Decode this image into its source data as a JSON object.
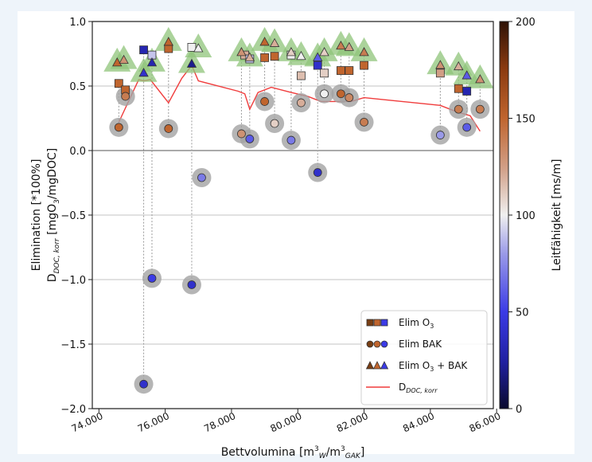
{
  "chart_data": {
    "type": "scatter",
    "xlabel_main": "Bettvolumina [m",
    "xlabel_sup1": "3",
    "xlabel_sub1": "W",
    "xlabel_mid": "/m",
    "xlabel_sup2": "3",
    "xlabel_sub2": "GAK",
    "xlabel_end": "]",
    "ylabel_line1": "Elimination [*100%]",
    "ylabel_line2_pre": "D",
    "ylabel_line2_sub": "DOC, korr",
    "ylabel_line2_post": " [mgO",
    "ylabel_line2_sub2": "3",
    "ylabel_line2_end": "/mgDOC]",
    "xlim": [
      73800,
      85900
    ],
    "ylim": [
      -2.0,
      1.0
    ],
    "xticks": [
      74000,
      76000,
      78000,
      80000,
      82000,
      84000,
      86000
    ],
    "xtick_labels": [
      "74.000",
      "76.000",
      "78.000",
      "80.000",
      "82.000",
      "84.000",
      "86.000"
    ],
    "yticks": [
      1.0,
      0.5,
      0.0,
      -0.5,
      -1.0,
      -1.5,
      -2.0
    ],
    "ytick_labels": [
      "1.0",
      "0.5",
      "0.0",
      "−0.5",
      "−1.0",
      "−1.5",
      "−2.0"
    ],
    "grid": "horizontal",
    "colorbar": {
      "label": "Leitfähigkeit [ms/m]",
      "range": [
        0,
        200
      ],
      "ticks": [
        0,
        50,
        100,
        150,
        200
      ],
      "tick_labels": [
        "0",
        "50",
        "100",
        "150",
        "200"
      ]
    },
    "legend": {
      "placement": "lower-right",
      "entries": [
        {
          "marker": "square",
          "label_pre": "Elim O",
          "label_sub": "3",
          "label_post": ""
        },
        {
          "marker": "circle",
          "label_pre": "Elim BAK",
          "label_sub": "",
          "label_post": ""
        },
        {
          "marker": "triangle",
          "label_pre": "Elim O",
          "label_sub": "3",
          "label_post": " + BAK"
        },
        {
          "marker": "line",
          "label_pre": "D",
          "label_sub": "DOC, korr",
          "label_post": ""
        }
      ]
    },
    "series": [
      {
        "name": "Elim O3",
        "marker": "square",
        "points": [
          {
            "x": 74600,
            "y": 0.52,
            "c": 150
          },
          {
            "x": 74800,
            "y": 0.47,
            "c": 150
          },
          {
            "x": 75350,
            "y": 0.78,
            "c": 30
          },
          {
            "x": 75600,
            "y": 0.74,
            "c": 90
          },
          {
            "x": 76100,
            "y": 0.79,
            "c": 150
          },
          {
            "x": 76800,
            "y": 0.8,
            "c": 100
          },
          {
            "x": 78400,
            "y": 0.74,
            "c": 120
          },
          {
            "x": 78550,
            "y": 0.71,
            "c": 90
          },
          {
            "x": 79000,
            "y": 0.72,
            "c": 150
          },
          {
            "x": 79300,
            "y": 0.73,
            "c": 150
          },
          {
            "x": 79800,
            "y": 0.74,
            "c": 100
          },
          {
            "x": 80100,
            "y": 0.58,
            "c": 115
          },
          {
            "x": 80600,
            "y": 0.66,
            "c": 40
          },
          {
            "x": 80800,
            "y": 0.6,
            "c": 110
          },
          {
            "x": 81300,
            "y": 0.62,
            "c": 150
          },
          {
            "x": 81550,
            "y": 0.62,
            "c": 150
          },
          {
            "x": 82000,
            "y": 0.66,
            "c": 150
          },
          {
            "x": 84300,
            "y": 0.6,
            "c": 125
          },
          {
            "x": 84850,
            "y": 0.48,
            "c": 150
          },
          {
            "x": 85100,
            "y": 0.46,
            "c": 30
          }
        ]
      },
      {
        "name": "Elim BAK",
        "marker": "circle",
        "points": [
          {
            "x": 74600,
            "y": 0.18,
            "c": 150
          },
          {
            "x": 74800,
            "y": 0.42,
            "c": 140
          },
          {
            "x": 75350,
            "y": -1.81,
            "c": 40
          },
          {
            "x": 75600,
            "y": -0.99,
            "c": 50
          },
          {
            "x": 76100,
            "y": 0.17,
            "c": 150
          },
          {
            "x": 76800,
            "y": -1.04,
            "c": 40
          },
          {
            "x": 77100,
            "y": -0.21,
            "c": 70
          },
          {
            "x": 78300,
            "y": 0.13,
            "c": 130
          },
          {
            "x": 78550,
            "y": 0.09,
            "c": 60
          },
          {
            "x": 79000,
            "y": 0.38,
            "c": 150
          },
          {
            "x": 79300,
            "y": 0.21,
            "c": 110
          },
          {
            "x": 79800,
            "y": 0.08,
            "c": 70
          },
          {
            "x": 80100,
            "y": 0.37,
            "c": 120
          },
          {
            "x": 80600,
            "y": -0.17,
            "c": 40
          },
          {
            "x": 80800,
            "y": 0.44,
            "c": 100
          },
          {
            "x": 81300,
            "y": 0.44,
            "c": 150
          },
          {
            "x": 81550,
            "y": 0.41,
            "c": 135
          },
          {
            "x": 82000,
            "y": 0.22,
            "c": 140
          },
          {
            "x": 84300,
            "y": 0.12,
            "c": 80
          },
          {
            "x": 84850,
            "y": 0.32,
            "c": 140
          },
          {
            "x": 85100,
            "y": 0.18,
            "c": 60
          },
          {
            "x": 85500,
            "y": 0.32,
            "c": 140
          }
        ]
      },
      {
        "name": "Elim O3 + BAK",
        "marker": "triangle",
        "points": [
          {
            "x": 74550,
            "y": 0.68,
            "c": 150
          },
          {
            "x": 74750,
            "y": 0.7,
            "c": 130
          },
          {
            "x": 75350,
            "y": 0.6,
            "c": 40
          },
          {
            "x": 75600,
            "y": 0.68,
            "c": 30
          },
          {
            "x": 76100,
            "y": 0.84,
            "c": 150
          },
          {
            "x": 76800,
            "y": 0.67,
            "c": 20
          },
          {
            "x": 77000,
            "y": 0.79,
            "c": 100
          },
          {
            "x": 78300,
            "y": 0.76,
            "c": 130
          },
          {
            "x": 78550,
            "y": 0.72,
            "c": 120
          },
          {
            "x": 79000,
            "y": 0.84,
            "c": 150
          },
          {
            "x": 79300,
            "y": 0.83,
            "c": 120
          },
          {
            "x": 79800,
            "y": 0.76,
            "c": 110
          },
          {
            "x": 80100,
            "y": 0.73,
            "c": 100
          },
          {
            "x": 80600,
            "y": 0.72,
            "c": 60
          },
          {
            "x": 80800,
            "y": 0.76,
            "c": 110
          },
          {
            "x": 81300,
            "y": 0.81,
            "c": 140
          },
          {
            "x": 81550,
            "y": 0.8,
            "c": 125
          },
          {
            "x": 82000,
            "y": 0.76,
            "c": 140
          },
          {
            "x": 84300,
            "y": 0.66,
            "c": 130
          },
          {
            "x": 84850,
            "y": 0.65,
            "c": 120
          },
          {
            "x": 85100,
            "y": 0.58,
            "c": 60
          },
          {
            "x": 85500,
            "y": 0.55,
            "c": 130
          }
        ]
      },
      {
        "name": "D_DOC,korr",
        "marker": "line",
        "color": "#f03c3c",
        "points": [
          {
            "x": 74600,
            "y": 0.22
          },
          {
            "x": 75200,
            "y": 0.55
          },
          {
            "x": 75350,
            "y": 0.54
          },
          {
            "x": 75550,
            "y": 0.55
          },
          {
            "x": 76100,
            "y": 0.37
          },
          {
            "x": 76500,
            "y": 0.56
          },
          {
            "x": 76800,
            "y": 0.66
          },
          {
            "x": 77000,
            "y": 0.54
          },
          {
            "x": 78200,
            "y": 0.46
          },
          {
            "x": 78400,
            "y": 0.44
          },
          {
            "x": 78550,
            "y": 0.32
          },
          {
            "x": 78800,
            "y": 0.45
          },
          {
            "x": 79200,
            "y": 0.49
          },
          {
            "x": 79800,
            "y": 0.45
          },
          {
            "x": 80300,
            "y": 0.42
          },
          {
            "x": 80700,
            "y": 0.38
          },
          {
            "x": 81300,
            "y": 0.38
          },
          {
            "x": 81600,
            "y": 0.38
          },
          {
            "x": 82000,
            "y": 0.41
          },
          {
            "x": 84300,
            "y": 0.35
          },
          {
            "x": 84800,
            "y": 0.3
          },
          {
            "x": 85200,
            "y": 0.27
          },
          {
            "x": 85500,
            "y": 0.15
          }
        ]
      }
    ]
  }
}
